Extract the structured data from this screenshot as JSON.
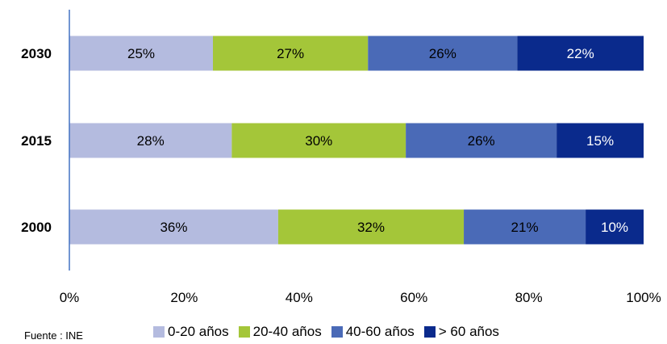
{
  "chart_data": {
    "type": "bar",
    "orientation": "horizontal",
    "stacked": true,
    "categories": [
      "2030",
      "2015",
      "2000"
    ],
    "series": [
      {
        "name": "0-20 años",
        "color": "#b4bbdf",
        "values": [
          25,
          28,
          36
        ],
        "labels": [
          "25%",
          "28%",
          "36%"
        ]
      },
      {
        "name": "20-40 años",
        "color": "#a4c639",
        "values": [
          27,
          30,
          32
        ],
        "labels": [
          "27%",
          "30%",
          "32%"
        ]
      },
      {
        "name": "40-60 años",
        "color": "#4a6ab7",
        "values": [
          26,
          26,
          21
        ],
        "labels": [
          "26%",
          "26%",
          "21%"
        ]
      },
      {
        "name": "> 60 años",
        "color": "#0a2a8c",
        "values": [
          22,
          15,
          10
        ],
        "labels": [
          "22%",
          "15%",
          "10%"
        ]
      }
    ],
    "xlim": [
      0,
      100
    ],
    "x_ticks": [
      "0%",
      "20%",
      "40%",
      "60%",
      "80%",
      "100%"
    ],
    "grid": false,
    "legend_position": "bottom"
  },
  "source_note": "Fuente : INE"
}
